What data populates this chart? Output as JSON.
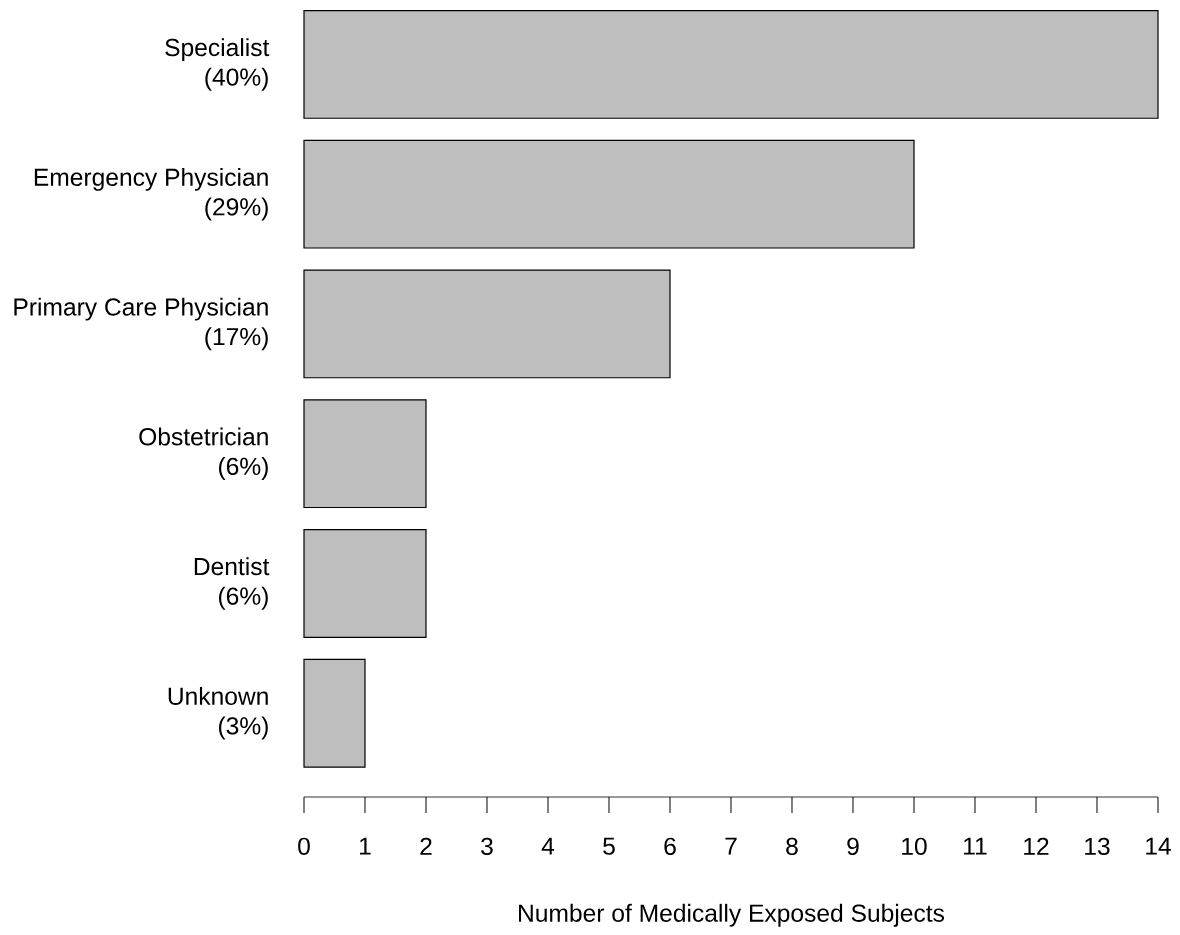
{
  "chart_data": {
    "type": "bar",
    "orientation": "horizontal",
    "xlabel": "Number of Medically Exposed Subjects",
    "categories": [
      "Specialist (40%)",
      "Emergency Physician (29%)",
      "Primary Care Physician (17%)",
      "Obstetrician (6%)",
      "Dentist (6%)",
      "Unknown (3%)"
    ],
    "values": [
      14,
      10,
      6,
      2,
      2,
      1
    ],
    "color": "#bebebe",
    "xlim": [
      0,
      14
    ],
    "xticks": [
      0,
      1,
      2,
      3,
      4,
      5,
      6,
      7,
      8,
      9,
      10,
      11,
      12,
      13,
      14
    ],
    "grid": false
  }
}
